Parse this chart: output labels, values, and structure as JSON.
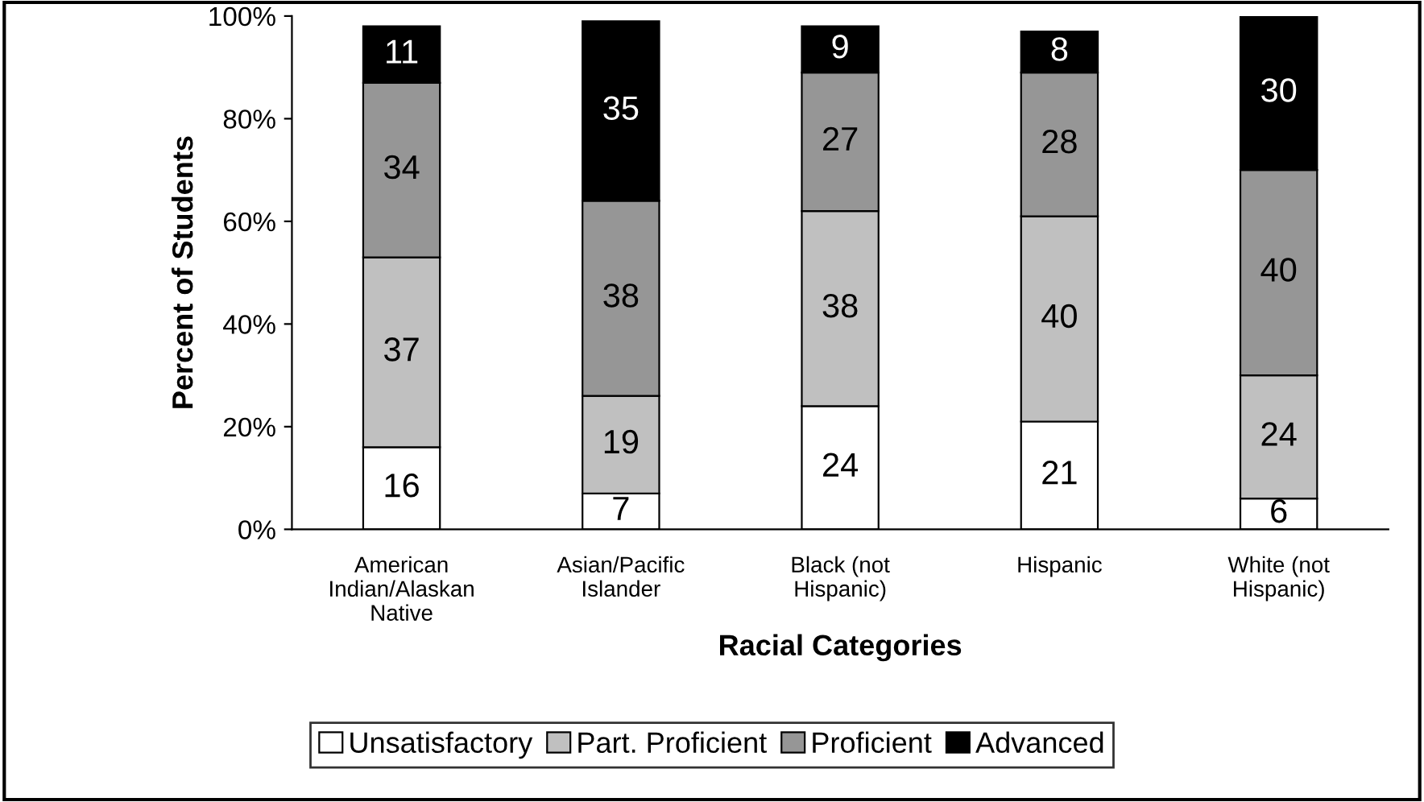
{
  "chart_data": {
    "type": "bar",
    "stacked": true,
    "xlabel": "Racial Categories",
    "ylabel": "Percent of Students",
    "categories": [
      "American\nIndian/Alaskan\nNative",
      "Asian/Pacific\nIslander",
      "Black (not\nHispanic)",
      "Hispanic",
      "White (not\nHispanic)"
    ],
    "series": [
      {
        "name": "Unsatisfactory",
        "color": "#ffffff",
        "values": [
          16,
          7,
          24,
          21,
          6
        ]
      },
      {
        "name": "Part. Proficient",
        "color": "#c0c0c0",
        "values": [
          37,
          19,
          38,
          40,
          24
        ]
      },
      {
        "name": "Proficient",
        "color": "#969696",
        "values": [
          34,
          38,
          27,
          28,
          40
        ]
      },
      {
        "name": "Advanced",
        "color": "#000000",
        "values": [
          11,
          35,
          9,
          8,
          30
        ]
      }
    ],
    "ylim": [
      0,
      100
    ],
    "yticks": [
      {
        "value": 0,
        "label": "0%"
      },
      {
        "value": 20,
        "label": "20%"
      },
      {
        "value": 40,
        "label": "40%"
      },
      {
        "value": 60,
        "label": "60%"
      },
      {
        "value": 80,
        "label": "80%"
      },
      {
        "value": 100,
        "label": "100%"
      }
    ],
    "data_labels": true,
    "legend": "bottom",
    "grid": false
  }
}
